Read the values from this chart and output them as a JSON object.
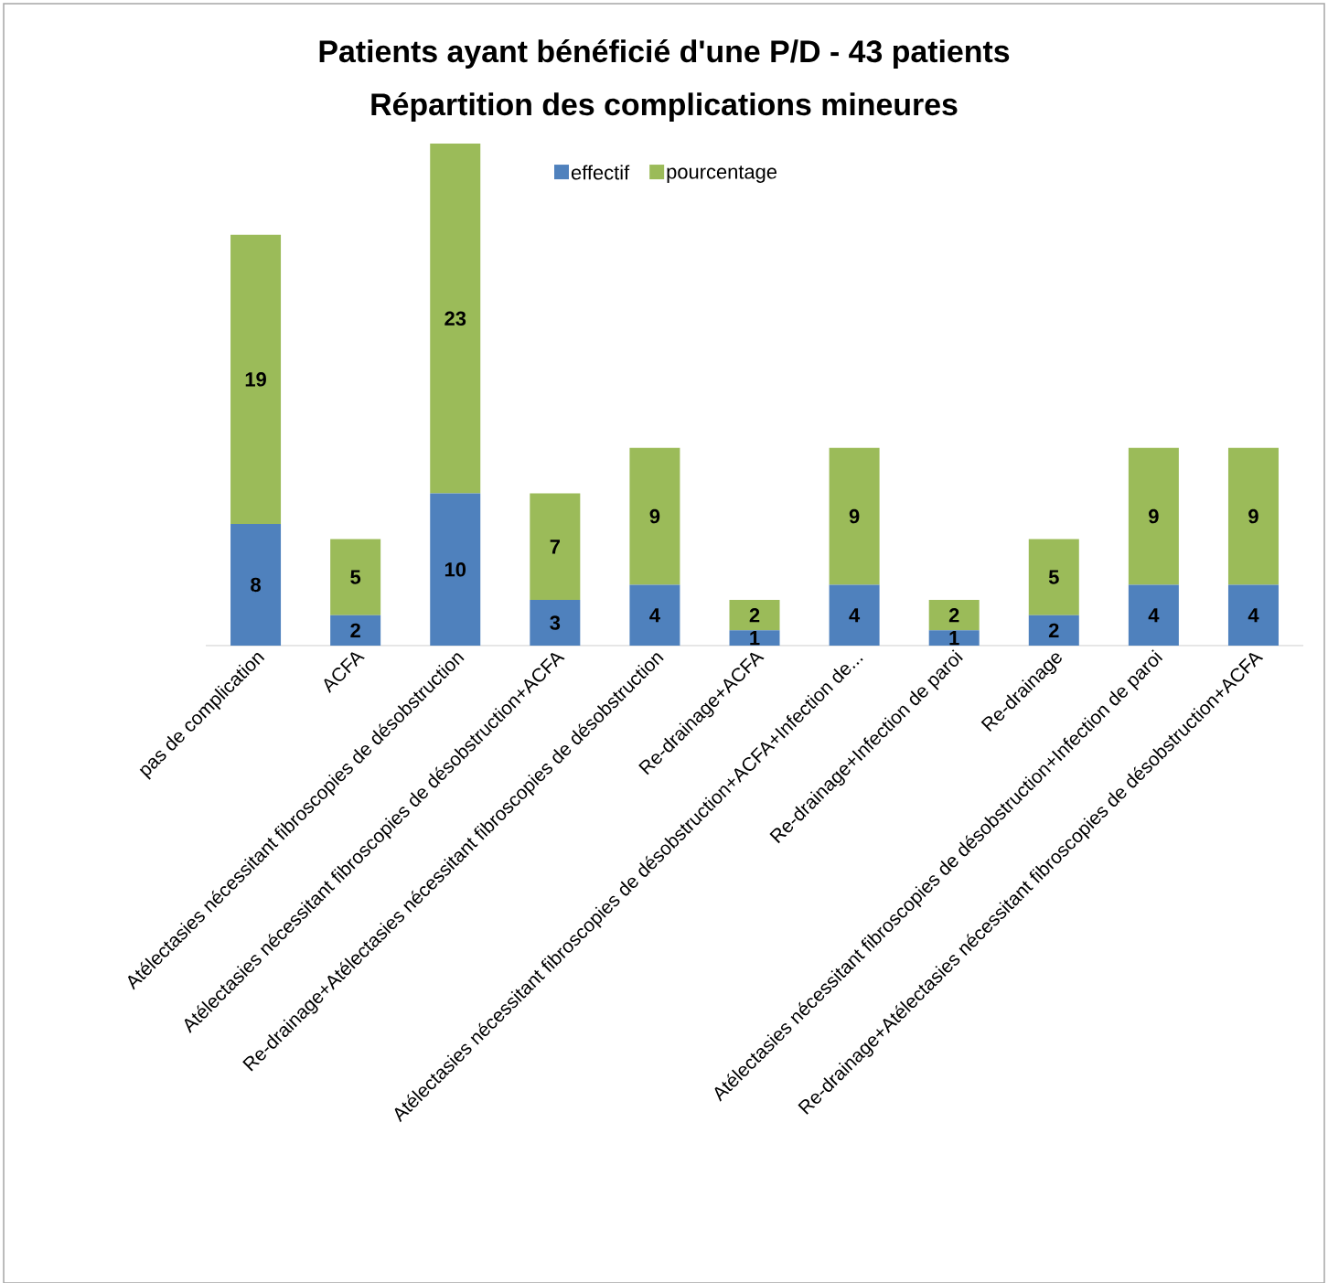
{
  "chart_data": {
    "type": "bar",
    "stacked": true,
    "data_labels": true,
    "legend": "top",
    "title": "Patients ayant bénéficié d'une P/D - 43 patients",
    "subtitle": "Répartition des complications mineures",
    "categories": [
      "pas de complication",
      "ACFA",
      "Atélectasies nécessitant fibroscopies de désobstruction",
      "Atélectasies nécessitant fibroscopies de désobstruction+ACFA",
      "Re-drainage+Atélectasies nécessitant fibroscopies de désobstruction",
      "Re-drainage+ACFA",
      "Atélectasies nécessitant fibroscopies de désobstruction+ACFA+Infection de...",
      "Re-drainage+Infection de paroi",
      "Re-drainage",
      "Atélectasies nécessitant fibroscopies de désobstruction+Infection de paroi",
      "Re-drainage+Atélectasies nécessitant fibroscopies de désobstruction+ACFA"
    ],
    "series": [
      {
        "name": "effectif",
        "color": "#4f81bd",
        "values": [
          8,
          2,
          10,
          3,
          4,
          1,
          4,
          1,
          2,
          4,
          4
        ]
      },
      {
        "name": "pourcentage",
        "color": "#9bbb59",
        "values": [
          19,
          5,
          23,
          7,
          9,
          2,
          9,
          2,
          5,
          9,
          9
        ]
      }
    ]
  }
}
